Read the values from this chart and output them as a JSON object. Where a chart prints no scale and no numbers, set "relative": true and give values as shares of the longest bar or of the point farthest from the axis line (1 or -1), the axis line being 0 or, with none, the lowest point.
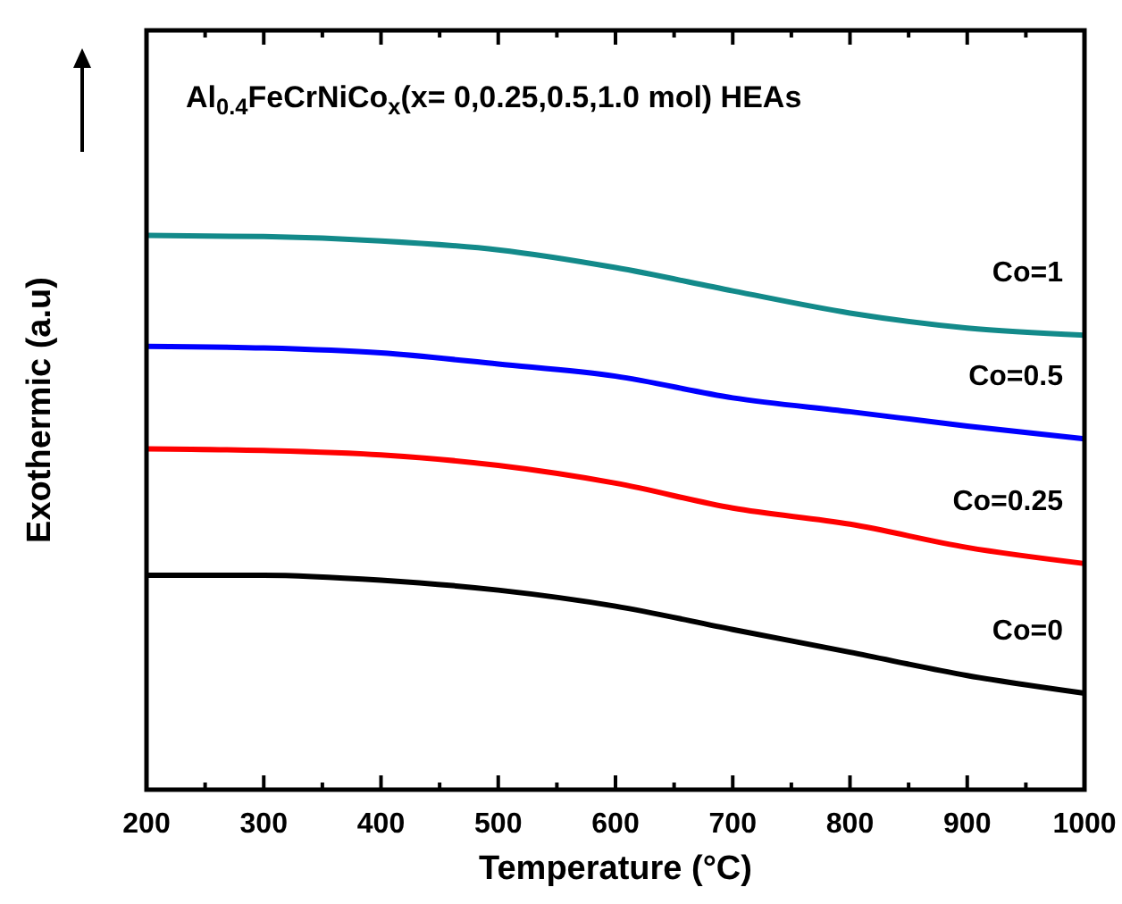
{
  "chart_data": {
    "type": "line",
    "relative": true,
    "title": "Al$_{0.4}$FeCrNiCo$_{x}$(x= 0,0.25,0.5,1.0 mol) HEAs",
    "xlabel": "Temperature (°C)",
    "ylabel": "Exothermic (a.u)",
    "x": [
      200,
      300,
      400,
      500,
      600,
      700,
      800,
      900,
      1000
    ],
    "xlim": [
      200,
      1000
    ],
    "xticks": [
      200,
      {
        "value": 250,
        "label": null
      },
      300,
      {
        "value": 350,
        "label": null
      },
      400,
      {
        "value": 450,
        "label": null
      },
      500,
      {
        "value": 550,
        "label": null
      },
      600,
      {
        "value": 650,
        "label": null
      },
      700,
      {
        "value": 750,
        "label": null
      },
      800,
      {
        "value": 850,
        "label": null
      },
      900,
      {
        "value": 950,
        "label": null
      },
      1000
    ],
    "grid": false,
    "marker": "none",
    "line_style": "solid",
    "series": [
      {
        "name": "Co=0",
        "color": "#000000",
        "values": [
          0.387,
          0.387,
          0.378,
          0.36,
          0.331,
          0.289,
          0.248,
          0.206,
          0.174
        ]
      },
      {
        "name": "Co=0.25",
        "color": "#ff0000",
        "values": [
          0.615,
          0.612,
          0.604,
          0.585,
          0.553,
          0.508,
          0.479,
          0.437,
          0.408
        ]
      },
      {
        "name": "Co=0.5",
        "color": "#0000ff",
        "values": [
          0.8,
          0.797,
          0.788,
          0.768,
          0.746,
          0.707,
          0.682,
          0.656,
          0.633
        ]
      },
      {
        "name": "Co=1",
        "color": "#138a8a",
        "values": [
          1.0,
          0.998,
          0.99,
          0.974,
          0.942,
          0.9,
          0.86,
          0.833,
          0.82
        ]
      }
    ]
  }
}
